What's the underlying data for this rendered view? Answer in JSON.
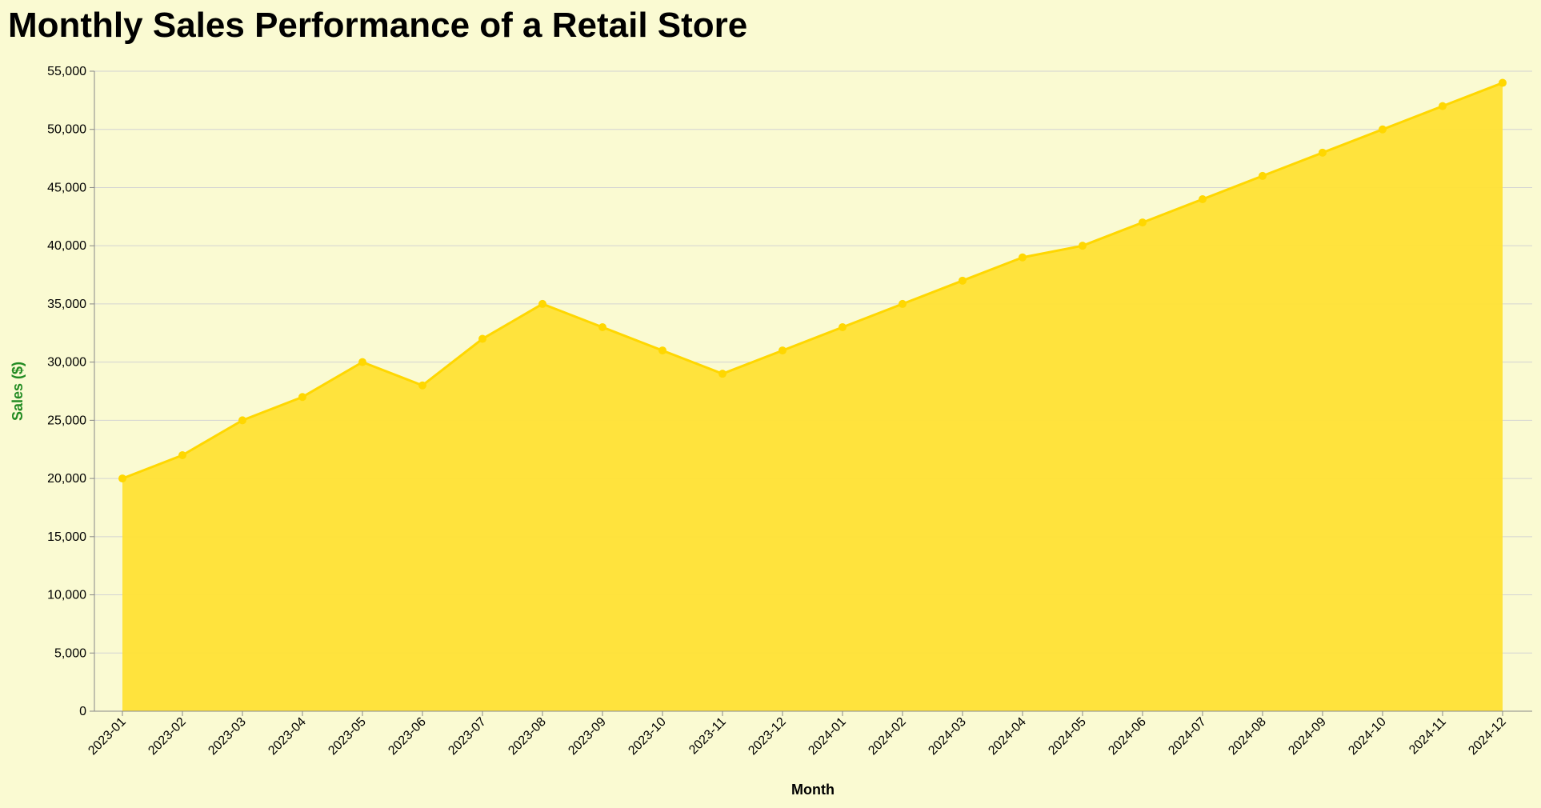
{
  "chart_data": {
    "type": "area",
    "title": "Monthly Sales Performance of a Retail Store",
    "xlabel": "Month",
    "ylabel": "Sales ($)",
    "ylim": [
      0,
      55000
    ],
    "y_ticks": [
      0,
      5000,
      10000,
      15000,
      20000,
      25000,
      30000,
      35000,
      40000,
      45000,
      50000,
      55000
    ],
    "grid": true,
    "categories": [
      "2023-01",
      "2023-02",
      "2023-03",
      "2023-04",
      "2023-05",
      "2023-06",
      "2023-07",
      "2023-08",
      "2023-09",
      "2023-10",
      "2023-11",
      "2023-12",
      "2024-01",
      "2024-02",
      "2024-03",
      "2024-04",
      "2024-05",
      "2024-06",
      "2024-07",
      "2024-08",
      "2024-09",
      "2024-10",
      "2024-11",
      "2024-12"
    ],
    "series": [
      {
        "name": "Sales",
        "values": [
          20000,
          22000,
          25000,
          27000,
          30000,
          28000,
          32000,
          35000,
          33000,
          31000,
          29000,
          31000,
          33000,
          35000,
          37000,
          39000,
          40000,
          42000,
          44000,
          46000,
          48000,
          50000,
          52000,
          54000
        ]
      }
    ]
  },
  "colors": {
    "background": "#FAFAD2",
    "area_fill": "#FFE135",
    "line": "#FFD700",
    "grid": "#D3D3D3",
    "axis": "#888888",
    "ylabel": "#228B22",
    "xlabel": "#000000"
  }
}
